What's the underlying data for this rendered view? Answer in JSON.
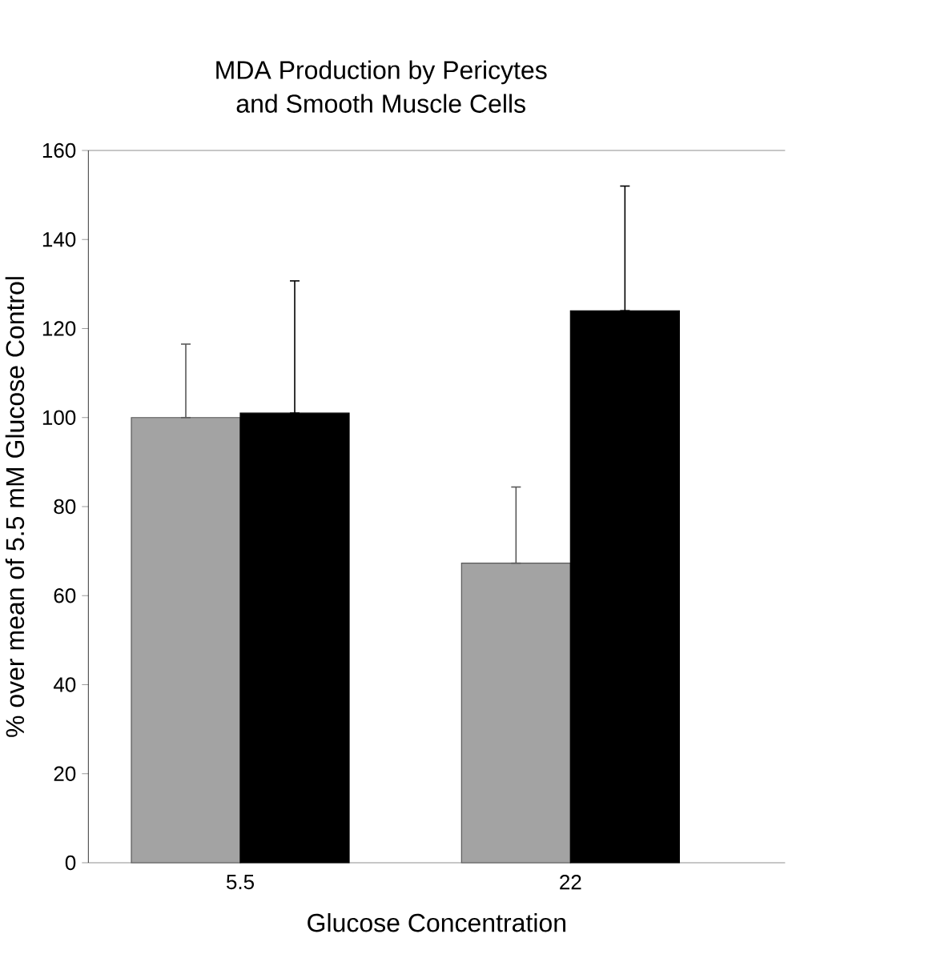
{
  "chart_data": {
    "type": "bar",
    "title": "MDA Production by Pericytes\nand Smooth Muscle Cells",
    "xlabel": "Glucose Concentration",
    "ylabel": "% over mean of 5.5 mM Glucose Control",
    "categories": [
      "5.5",
      "22"
    ],
    "series": [
      {
        "color": "#a3a3a3",
        "values": [
          100,
          67.3
        ],
        "errors": [
          [
            100,
            116.5
          ],
          [
            67.3,
            84.4
          ]
        ]
      },
      {
        "color": "#000000",
        "values": [
          101,
          124
        ],
        "errors": [
          [
            101,
            130.7
          ],
          [
            124,
            152
          ]
        ]
      }
    ],
    "ylim": [
      0,
      160
    ],
    "yticks": [
      0,
      20,
      40,
      60,
      80,
      100,
      120,
      140,
      160
    ],
    "grid": false
  }
}
